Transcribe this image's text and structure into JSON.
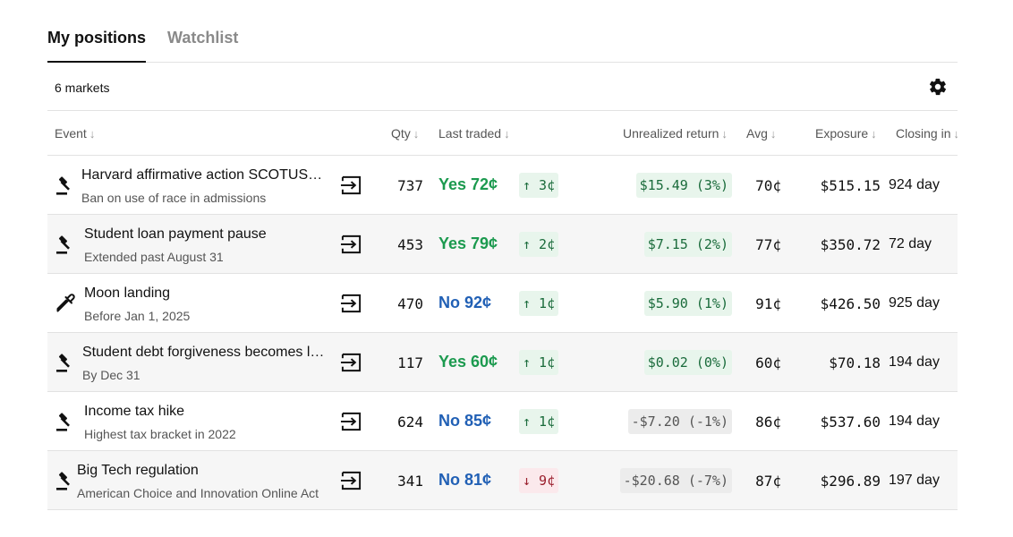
{
  "tabs": [
    {
      "label": "My positions",
      "active": true
    },
    {
      "label": "Watchlist",
      "active": false
    }
  ],
  "market_count": "6 markets",
  "header": {
    "event": "Event",
    "qty": "Qty",
    "last_traded": "Last traded",
    "unrealized_return": "Unrealized return",
    "avg": "Avg",
    "exposure": "Exposure",
    "closing_in": "Closing in"
  },
  "sort_arrow": "↓",
  "positions": [
    {
      "icon": "gavel-icon",
      "title": "Harvard affirmative action SCOTUS case",
      "subtitle": "Ban on use of race in admissions",
      "qty": "737",
      "last_traded": "Yes 72¢",
      "side": "yes",
      "change": "↑ 3¢",
      "change_dir": "up",
      "return": "$15.49 (3%)",
      "return_sign": "pos",
      "avg": "70¢",
      "exposure": "$515.15",
      "closing_in": "924 day"
    },
    {
      "icon": "gavel-icon",
      "title": "Student loan payment pause",
      "subtitle": "Extended past August 31",
      "qty": "453",
      "last_traded": "Yes 79¢",
      "side": "yes",
      "change": "↑ 2¢",
      "change_dir": "up",
      "return": "$7.15 (2%)",
      "return_sign": "pos",
      "avg": "77¢",
      "exposure": "$350.72",
      "closing_in": "72 day"
    },
    {
      "icon": "pipette-icon",
      "title": "Moon landing",
      "subtitle": "Before Jan 1, 2025",
      "qty": "470",
      "last_traded": "No 92¢",
      "side": "no",
      "change": "↑ 1¢",
      "change_dir": "up",
      "return": "$5.90 (1%)",
      "return_sign": "pos",
      "avg": "91¢",
      "exposure": "$426.50",
      "closing_in": "925 day"
    },
    {
      "icon": "gavel-icon",
      "title": "Student debt forgiveness becomes law",
      "subtitle": "By Dec 31",
      "qty": "117",
      "last_traded": "Yes 60¢",
      "side": "yes",
      "change": "↑ 1¢",
      "change_dir": "up",
      "return": "$0.02 (0%)",
      "return_sign": "pos",
      "avg": "60¢",
      "exposure": "$70.18",
      "closing_in": "194 day"
    },
    {
      "icon": "gavel-icon",
      "title": "Income tax hike",
      "subtitle": "Highest tax bracket in 2022",
      "qty": "624",
      "last_traded": "No 85¢",
      "side": "no",
      "change": "↑ 1¢",
      "change_dir": "up",
      "return": "-$7.20 (-1%)",
      "return_sign": "neg",
      "avg": "86¢",
      "exposure": "$537.60",
      "closing_in": "194 day"
    },
    {
      "icon": "gavel-icon",
      "title": "Big Tech regulation",
      "subtitle": "American Choice and Innovation Online Act",
      "qty": "341",
      "last_traded": "No 81¢",
      "side": "no",
      "change": "↓ 9¢",
      "change_dir": "down",
      "return": "-$20.68 (-7%)",
      "return_sign": "neg",
      "avg": "87¢",
      "exposure": "$296.89",
      "closing_in": "197 day"
    }
  ],
  "colors": {
    "yes": "#1c9a4f",
    "no": "#2160b5",
    "up_bg": "#e8f5ec",
    "down_bg": "#fbe9ec",
    "row_alt_bg": "#f6f6f6"
  }
}
